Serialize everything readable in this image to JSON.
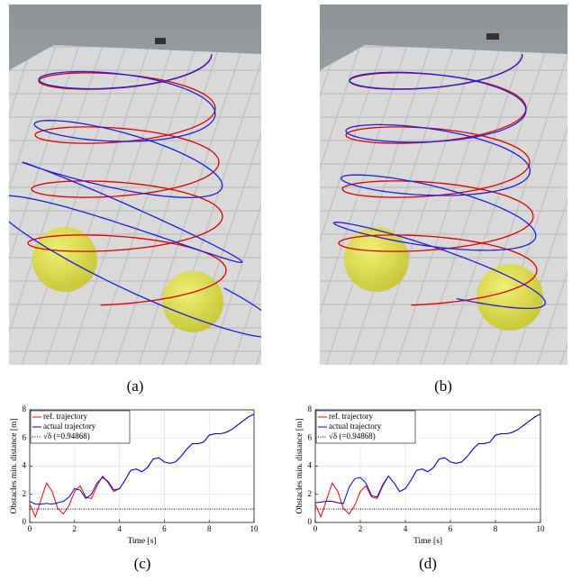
{
  "captions": [
    "(a)",
    "(b)",
    "(c)",
    "(d)"
  ],
  "chart_data": [
    {
      "type": "line",
      "xlabel": "Time [s]",
      "ylabel": "Obstacles min. distance [m]",
      "xlim": [
        0,
        10
      ],
      "ylim": [
        0,
        8
      ],
      "xticks": [
        0,
        2,
        4,
        6,
        8,
        10
      ],
      "yticks": [
        0,
        2,
        4,
        6,
        8
      ],
      "grid": true,
      "legend": "upper-left",
      "x": [
        0,
        0.25,
        0.5,
        0.75,
        1,
        1.25,
        1.5,
        1.75,
        2,
        2.25,
        2.5,
        2.75,
        3,
        3.25,
        3.5,
        3.75,
        4,
        4.25,
        4.5,
        4.75,
        5,
        5.25,
        5.5,
        5.75,
        6,
        6.25,
        6.5,
        6.75,
        7,
        7.25,
        7.5,
        7.75,
        8,
        8.25,
        8.5,
        8.75,
        9,
        9.25,
        9.5,
        9.75,
        10
      ],
      "series": [
        {
          "name": "ref. trajectory",
          "color": "#ff0000",
          "values": [
            1.3,
            0.4,
            1.6,
            2.8,
            2.2,
            1.0,
            0.6,
            1.2,
            2.2,
            2.6,
            1.8,
            1.7,
            2.6,
            3.3,
            2.8,
            2.2,
            2.4,
            3.0,
            3.7,
            3.8,
            3.6,
            3.9,
            4.5,
            4.6,
            4.3,
            4.2,
            4.3,
            4.7,
            5.2,
            5.6,
            5.6,
            5.7,
            6.2,
            6.3,
            6.3,
            6.4,
            6.6,
            6.9,
            7.2,
            7.5,
            7.7
          ]
        },
        {
          "name": "actual trajectory",
          "color": "#0000ff",
          "values": [
            1.5,
            1.3,
            1.3,
            1.35,
            1.3,
            1.4,
            1.5,
            1.8,
            2.4,
            2.3,
            1.7,
            2.0,
            2.8,
            3.2,
            2.9,
            2.3,
            2.4,
            3.0,
            3.7,
            3.8,
            3.6,
            3.9,
            4.5,
            4.6,
            4.3,
            4.2,
            4.3,
            4.7,
            5.2,
            5.6,
            5.6,
            5.7,
            6.2,
            6.3,
            6.3,
            6.4,
            6.6,
            6.9,
            7.2,
            7.5,
            7.7
          ]
        },
        {
          "name": "√δ   (=0.94868)",
          "color": "#000000",
          "dash": "dotted",
          "x": [
            0,
            10
          ],
          "values": [
            0.94868,
            0.94868
          ]
        }
      ]
    },
    {
      "type": "line",
      "xlabel": "Time [s]",
      "ylabel": "Obstacles min. distance [m]",
      "xlim": [
        0,
        10
      ],
      "ylim": [
        0,
        8
      ],
      "xticks": [
        0,
        2,
        4,
        6,
        8,
        10
      ],
      "yticks": [
        0,
        2,
        4,
        6,
        8
      ],
      "grid": true,
      "legend": "upper-left",
      "x": [
        0,
        0.25,
        0.5,
        0.75,
        1,
        1.25,
        1.5,
        1.75,
        2,
        2.25,
        2.5,
        2.75,
        3,
        3.25,
        3.5,
        3.75,
        4,
        4.25,
        4.5,
        4.75,
        5,
        5.25,
        5.5,
        5.75,
        6,
        6.25,
        6.5,
        6.75,
        7,
        7.25,
        7.5,
        7.75,
        8,
        8.25,
        8.5,
        8.75,
        9,
        9.25,
        9.5,
        9.75,
        10
      ],
      "series": [
        {
          "name": "ref. trajectory",
          "color": "#ff0000",
          "values": [
            1.3,
            0.4,
            1.6,
            2.8,
            2.2,
            1.0,
            0.6,
            1.2,
            2.2,
            2.6,
            1.8,
            1.7,
            2.6,
            3.3,
            2.8,
            2.2,
            2.4,
            3.0,
            3.7,
            3.8,
            3.6,
            3.9,
            4.5,
            4.6,
            4.3,
            4.2,
            4.3,
            4.7,
            5.2,
            5.6,
            5.6,
            5.7,
            6.2,
            6.3,
            6.3,
            6.4,
            6.6,
            6.9,
            7.2,
            7.5,
            7.7
          ]
        },
        {
          "name": "actual trajectory",
          "color": "#0000ff",
          "values": [
            1.4,
            1.45,
            1.5,
            1.5,
            1.4,
            1.35,
            2.5,
            3.1,
            3.2,
            2.8,
            1.9,
            1.8,
            2.7,
            3.3,
            2.8,
            2.2,
            2.4,
            3.0,
            3.7,
            3.8,
            3.6,
            3.9,
            4.5,
            4.6,
            4.3,
            4.2,
            4.3,
            4.7,
            5.2,
            5.6,
            5.6,
            5.7,
            6.2,
            6.3,
            6.3,
            6.4,
            6.6,
            6.9,
            7.2,
            7.5,
            7.7
          ]
        },
        {
          "name": "√δ   (=0.94868)",
          "color": "#000000",
          "dash": "dotted",
          "x": [
            0,
            10
          ],
          "values": [
            0.94868,
            0.94868
          ]
        }
      ]
    }
  ]
}
